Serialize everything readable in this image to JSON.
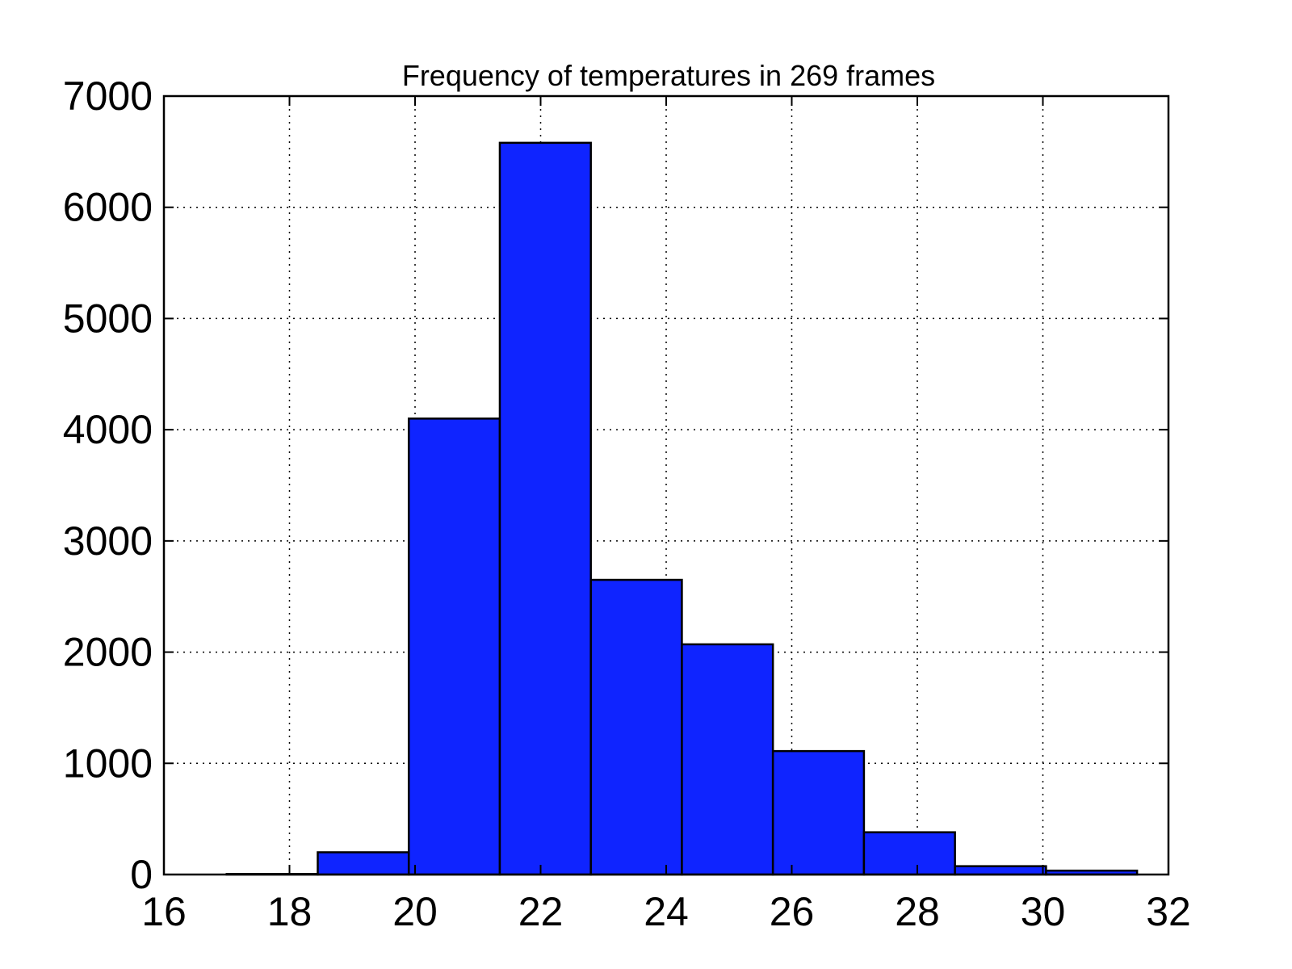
{
  "chart_data": {
    "type": "bar",
    "title": "Frequency of temperatures in 269 frames",
    "xlabel": "",
    "ylabel": "",
    "xlim": [
      16,
      32
    ],
    "ylim": [
      0,
      7000
    ],
    "xticks": [
      16,
      18,
      20,
      22,
      24,
      26,
      28,
      30,
      32
    ],
    "yticks": [
      0,
      1000,
      2000,
      3000,
      4000,
      5000,
      6000,
      7000
    ],
    "grid": true,
    "bar_color": "#0f24ff",
    "edge_color": "#000000",
    "bins": [
      {
        "x0": 17.0,
        "x1": 18.45,
        "value": 5
      },
      {
        "x0": 18.45,
        "x1": 19.9,
        "value": 200
      },
      {
        "x0": 19.9,
        "x1": 21.35,
        "value": 4100
      },
      {
        "x0": 21.35,
        "x1": 22.8,
        "value": 6580
      },
      {
        "x0": 22.8,
        "x1": 24.25,
        "value": 2650
      },
      {
        "x0": 24.25,
        "x1": 25.7,
        "value": 2070
      },
      {
        "x0": 25.7,
        "x1": 27.15,
        "value": 1110
      },
      {
        "x0": 27.15,
        "x1": 28.6,
        "value": 380
      },
      {
        "x0": 28.6,
        "x1": 30.05,
        "value": 75
      },
      {
        "x0": 30.05,
        "x1": 31.5,
        "value": 35
      }
    ]
  }
}
